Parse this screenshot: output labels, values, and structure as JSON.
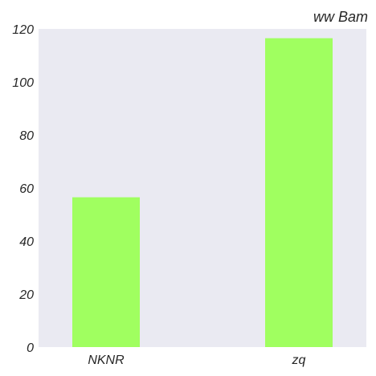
{
  "chart_data": {
    "type": "bar",
    "title": "ww Bam",
    "xlabel": "",
    "ylabel": "",
    "categories": [
      "NKNR",
      "zq"
    ],
    "values": [
      56.5,
      116.5
    ],
    "ylim": [
      0,
      120
    ],
    "yticks": [
      "0",
      "20",
      "40",
      "60",
      "80",
      "100",
      "120"
    ],
    "grid": false,
    "legend": "none",
    "colors": {
      "bar": "#a0ff60",
      "plot_background": "#eaeaf2",
      "text": "#262626"
    }
  }
}
